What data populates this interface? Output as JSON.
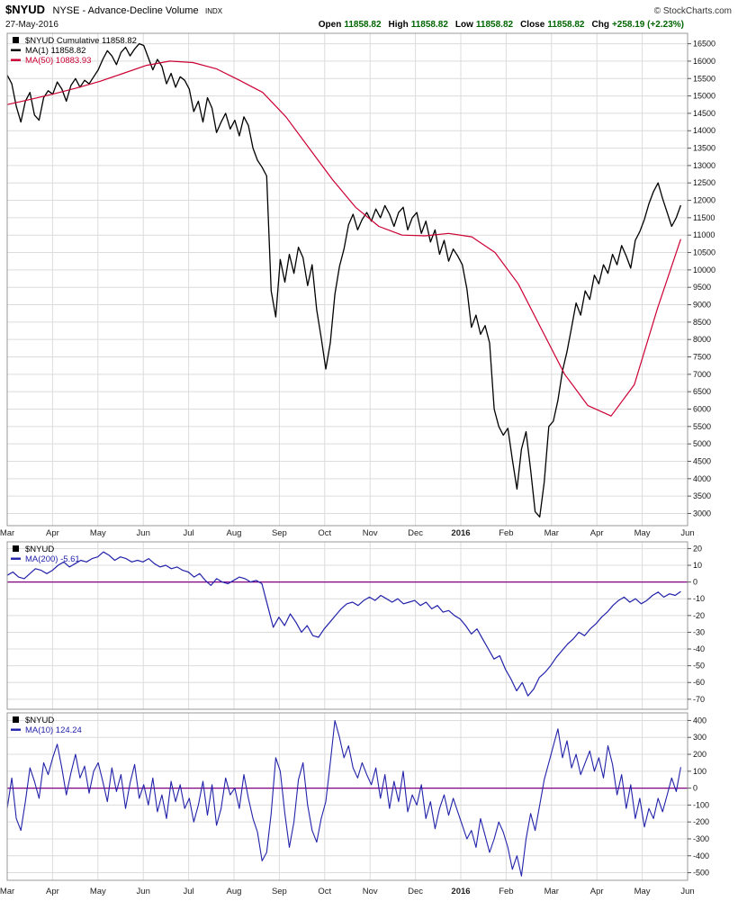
{
  "header": {
    "symbol": "$NYUD",
    "name": "NYSE - Advance-Decline Volume",
    "type": "INDX",
    "date": "27-May-2016",
    "copyright": "© StockCharts.com",
    "quote_items": [
      {
        "label": "Open",
        "value": "11858.82"
      },
      {
        "label": "High",
        "value": "11858.82"
      },
      {
        "label": "Low",
        "value": "11858.82"
      },
      {
        "label": "Close",
        "value": "11858.82"
      },
      {
        "label": "Chg",
        "value": "+258.19 (+2.23%)"
      }
    ]
  },
  "colors": {
    "price_line": "#000000",
    "ma50_line": "#cc0033",
    "blue_line": "#2222aa",
    "zero_line": "#800080",
    "grid": "#dcdcdc",
    "border": "#999999"
  },
  "chart_data": [
    {
      "type": "line",
      "panel": "price",
      "title": "$NYUD Cumulative with MA(50)",
      "x_labels": [
        "Mar",
        "Apr",
        "May",
        "Jun",
        "Jul",
        "Aug",
        "Sep",
        "Oct",
        "Nov",
        "Dec",
        "2016",
        "Feb",
        "Mar",
        "Apr",
        "May",
        "Jun"
      ],
      "ylim": [
        2650,
        16800
      ],
      "yticks": [
        16500,
        16000,
        15500,
        15000,
        14500,
        14000,
        13500,
        13000,
        12500,
        12000,
        11500,
        11000,
        10500,
        10000,
        9500,
        9000,
        8500,
        8000,
        7500,
        7000,
        6500,
        6000,
        5500,
        5000,
        4500,
        4000,
        3500,
        3000
      ],
      "legend": [
        {
          "marker": "square",
          "color": "#000000",
          "label": "$NYUD Cumulative 11858.82"
        },
        {
          "marker": "line",
          "color": "#000000",
          "label": "MA(1) 11858.82"
        },
        {
          "marker": "line",
          "color": "#cc0033",
          "label": "MA(50) 10883.93"
        }
      ],
      "series": [
        {
          "name": "nyud-cumulative",
          "color": "#000000",
          "width": 1.3,
          "x_end": 14.85,
          "values": [
            15600,
            15350,
            14700,
            14250,
            14850,
            15100,
            14450,
            14300,
            14950,
            15150,
            15050,
            15400,
            15200,
            14850,
            15300,
            15500,
            15250,
            15450,
            15350,
            15550,
            15750,
            16050,
            16300,
            16150,
            15900,
            16250,
            16400,
            16150,
            16350,
            16500,
            16450,
            16100,
            15750,
            16050,
            15850,
            15350,
            15650,
            15250,
            15550,
            15450,
            15200,
            14550,
            14850,
            14250,
            14950,
            14650,
            13950,
            14250,
            14500,
            14050,
            14300,
            13850,
            14400,
            14150,
            13500,
            13150,
            12950,
            12700,
            9400,
            8650,
            10300,
            9650,
            10450,
            9900,
            10650,
            10350,
            9550,
            10150,
            8850,
            8050,
            7150,
            7900,
            9300,
            10100,
            10600,
            11300,
            11600,
            11150,
            11450,
            11650,
            11400,
            11750,
            11500,
            11850,
            11600,
            11250,
            11650,
            11800,
            11150,
            11500,
            11650,
            11050,
            11400,
            10800,
            11150,
            10450,
            10850,
            10250,
            10600,
            10400,
            10150,
            9450,
            8350,
            8700,
            8150,
            8400,
            7900,
            6000,
            5500,
            5250,
            5450,
            4550,
            3700,
            4850,
            5350,
            4250,
            3050,
            2900,
            3900,
            5500,
            5650,
            6250,
            7100,
            7650,
            8350,
            9050,
            8700,
            9400,
            9150,
            9850,
            9600,
            10150,
            9900,
            10450,
            10150,
            10700,
            10400,
            10050,
            10850,
            11100,
            11450,
            11900,
            12250,
            12500,
            12050,
            11650,
            11250,
            11500,
            11858
          ]
        },
        {
          "name": "ma50",
          "color": "#cc0033",
          "width": 1.2,
          "x_end": 14.85,
          "values": [
            14750,
            14900,
            15060,
            15230,
            15420,
            15650,
            15880,
            16000,
            15960,
            15780,
            15450,
            15100,
            14400,
            13500,
            12600,
            11800,
            11250,
            11000,
            10980,
            11050,
            10950,
            10500,
            9600,
            8300,
            7000,
            6100,
            5800,
            6700,
            8900,
            10884
          ]
        }
      ]
    },
    {
      "type": "line",
      "panel": "ma200-distance",
      "title": "$NYUD MA(200)",
      "ylim": [
        -76,
        24
      ],
      "yticks": [
        20,
        10,
        0,
        -10,
        -20,
        -30,
        -40,
        -50,
        -60,
        -70
      ],
      "zero_line": 0,
      "legend": [
        {
          "marker": "square",
          "color": "#000000",
          "label": "$NYUD"
        },
        {
          "marker": "line",
          "color": "#2222aa",
          "label": "MA(200) -5.61"
        }
      ],
      "series": [
        {
          "name": "ma200-distance",
          "color": "#2222aa",
          "width": 1.2,
          "x_end": 14.85,
          "values": [
            4,
            6,
            3,
            2,
            5,
            8,
            7,
            5,
            7,
            10,
            12,
            9,
            11,
            13,
            12,
            14,
            15,
            18,
            16,
            13,
            15,
            14,
            12,
            13,
            12,
            14,
            11,
            9,
            10,
            8,
            9,
            7,
            6,
            3,
            5,
            1,
            -2,
            2,
            0,
            -1,
            1,
            3,
            2,
            0,
            1,
            -1,
            -14,
            -27,
            -21,
            -26,
            -19,
            -24,
            -30,
            -26,
            -32,
            -33,
            -28,
            -24,
            -20,
            -16,
            -13,
            -12,
            -14,
            -11,
            -9,
            -11,
            -8,
            -10,
            -12,
            -10,
            -13,
            -12,
            -11,
            -14,
            -12,
            -16,
            -14,
            -18,
            -17,
            -20,
            -22,
            -26,
            -31,
            -28,
            -34,
            -40,
            -46,
            -44,
            -52,
            -58,
            -65,
            -60,
            -68,
            -64,
            -57,
            -54,
            -50,
            -45,
            -41,
            -37,
            -34,
            -30,
            -32,
            -28,
            -25,
            -21,
            -18,
            -14,
            -11,
            -9,
            -12,
            -10,
            -13,
            -11,
            -8,
            -6,
            -9,
            -7,
            -8,
            -5.61
          ]
        }
      ]
    },
    {
      "type": "line",
      "panel": "ma10-oscillator",
      "title": "$NYUD MA(10)",
      "ylim": [
        -545,
        445
      ],
      "yticks": [
        400,
        300,
        200,
        100,
        0,
        -100,
        -200,
        -300,
        -400,
        -500
      ],
      "zero_line": 0,
      "legend": [
        {
          "marker": "square",
          "color": "#000000",
          "label": "$NYUD"
        },
        {
          "marker": "line",
          "color": "#2222aa",
          "label": "MA(10) 124.24"
        }
      ],
      "series": [
        {
          "name": "ma10-oscillator",
          "color": "#2222aa",
          "width": 1.1,
          "x_end": 14.85,
          "values": [
            -120,
            60,
            -180,
            -250,
            -80,
            120,
            40,
            -60,
            150,
            80,
            180,
            260,
            120,
            -40,
            90,
            200,
            60,
            130,
            -30,
            100,
            150,
            40,
            -80,
            120,
            -20,
            80,
            -120,
            30,
            140,
            -60,
            20,
            -100,
            60,
            -140,
            -40,
            -180,
            40,
            -80,
            20,
            -120,
            -60,
            -200,
            -100,
            40,
            -160,
            20,
            -220,
            -120,
            60,
            -40,
            0,
            -120,
            80,
            -60,
            -180,
            -260,
            -430,
            -380,
            -150,
            180,
            100,
            -150,
            -350,
            -200,
            50,
            150,
            -100,
            -250,
            -320,
            -180,
            -80,
            150,
            400,
            300,
            180,
            250,
            120,
            60,
            150,
            80,
            20,
            120,
            -60,
            80,
            -120,
            40,
            -80,
            100,
            -140,
            -40,
            -100,
            20,
            -180,
            -80,
            -240,
            -120,
            -40,
            -160,
            -60,
            -140,
            -220,
            -300,
            -250,
            -350,
            -180,
            -280,
            -380,
            -300,
            -200,
            -260,
            -350,
            -480,
            -400,
            -520,
            -300,
            -150,
            -250,
            -100,
            50,
            150,
            250,
            350,
            180,
            280,
            120,
            200,
            80,
            150,
            220,
            100,
            180,
            60,
            250,
            140,
            -40,
            80,
            -120,
            20,
            -180,
            -60,
            -230,
            -120,
            -180,
            -60,
            -140,
            -40,
            60,
            -20,
            124
          ]
        }
      ]
    }
  ]
}
